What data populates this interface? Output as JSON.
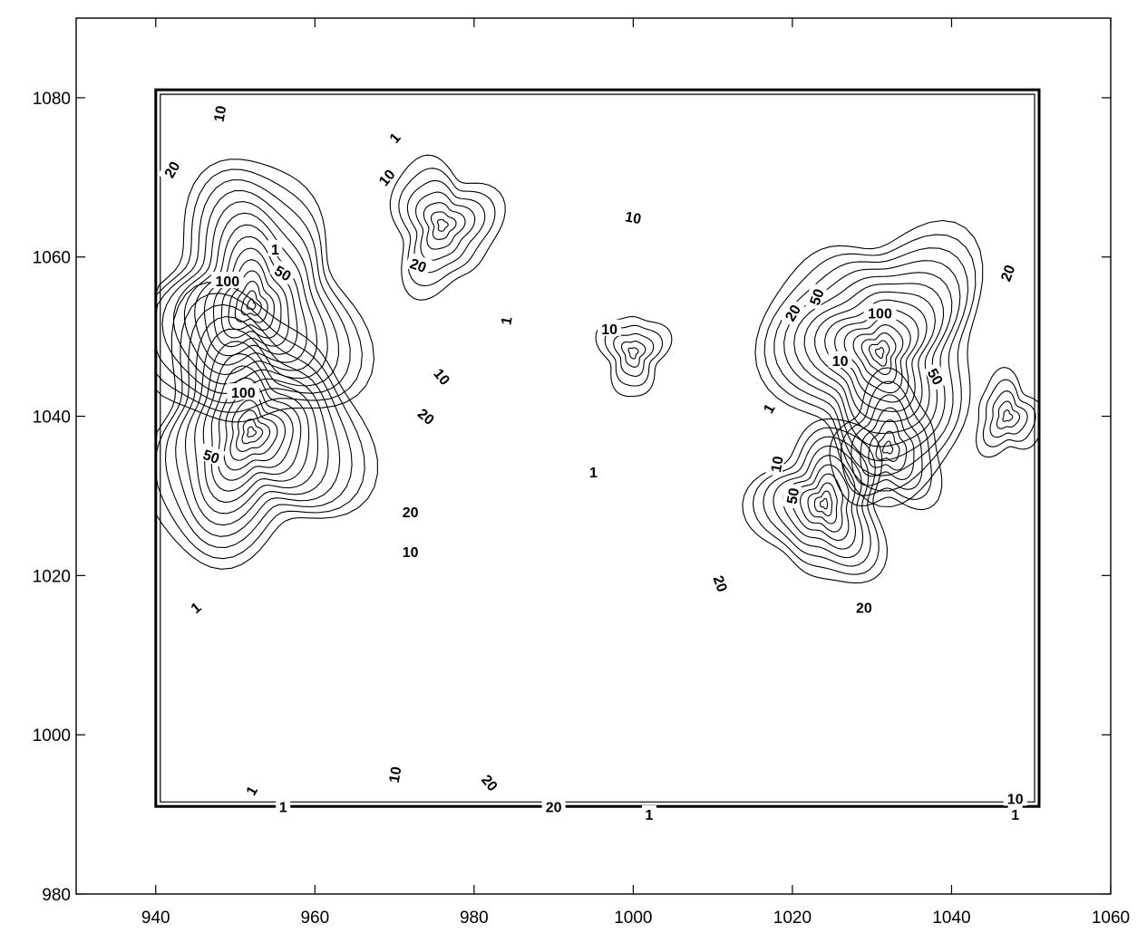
{
  "chart_data": {
    "type": "contour",
    "title": "",
    "xlabel": "",
    "ylabel": "",
    "xlim": [
      930,
      1060
    ],
    "ylim": [
      980,
      1090
    ],
    "x_ticks": [
      940,
      960,
      980,
      1000,
      1020,
      1040,
      1060
    ],
    "y_ticks": [
      980,
      1000,
      1020,
      1040,
      1060,
      1080
    ],
    "grid": false,
    "boundary": [
      [
        940,
        1081
      ],
      [
        1051,
        1081
      ],
      [
        1051,
        991
      ],
      [
        940,
        991
      ]
    ],
    "contour_levels": [
      1,
      10,
      20,
      50,
      100
    ],
    "peaks": [
      {
        "x": 952,
        "y": 1054,
        "level": 100
      },
      {
        "x": 952,
        "y": 1038,
        "level": 100
      },
      {
        "x": 976,
        "y": 1064,
        "level": 20
      },
      {
        "x": 1000,
        "y": 1048,
        "level": 10
      },
      {
        "x": 1031,
        "y": 1048,
        "level": 100
      },
      {
        "x": 1024,
        "y": 1029,
        "level": 50
      },
      {
        "x": 1032,
        "y": 1036,
        "level": 20
      },
      {
        "x": 1047,
        "y": 1040,
        "level": 10
      }
    ],
    "contour_labels": [
      {
        "text": "10",
        "x": 948,
        "y": 1078,
        "rot": -80
      },
      {
        "text": "20",
        "x": 942,
        "y": 1071,
        "rot": -60
      },
      {
        "text": "1",
        "x": 955,
        "y": 1061,
        "rot": 0
      },
      {
        "text": "50",
        "x": 956,
        "y": 1058,
        "rot": 30
      },
      {
        "text": "100",
        "x": 949,
        "y": 1057,
        "rot": 0
      },
      {
        "text": "100",
        "x": 951,
        "y": 1043,
        "rot": 0
      },
      {
        "text": "50",
        "x": 947,
        "y": 1035,
        "rot": 20
      },
      {
        "text": "10",
        "x": 969,
        "y": 1070,
        "rot": -50
      },
      {
        "text": "1",
        "x": 970,
        "y": 1075,
        "rot": -50
      },
      {
        "text": "20",
        "x": 973,
        "y": 1059,
        "rot": 20
      },
      {
        "text": "10",
        "x": 1000,
        "y": 1065,
        "rot": 10
      },
      {
        "text": "1",
        "x": 984,
        "y": 1052,
        "rot": -80
      },
      {
        "text": "10",
        "x": 997,
        "y": 1051,
        "rot": 0
      },
      {
        "text": "10",
        "x": 976,
        "y": 1045,
        "rot": 50
      },
      {
        "text": "20",
        "x": 974,
        "y": 1040,
        "rot": 40
      },
      {
        "text": "1",
        "x": 995,
        "y": 1033,
        "rot": 0
      },
      {
        "text": "20",
        "x": 972,
        "y": 1028,
        "rot": 0
      },
      {
        "text": "10",
        "x": 972,
        "y": 1023,
        "rot": 0
      },
      {
        "text": "1",
        "x": 945,
        "y": 1016,
        "rot": -40
      },
      {
        "text": "20",
        "x": 1011,
        "y": 1019,
        "rot": 70
      },
      {
        "text": "20",
        "x": 1020,
        "y": 1053,
        "rot": -60
      },
      {
        "text": "50",
        "x": 1023,
        "y": 1055,
        "rot": -70
      },
      {
        "text": "100",
        "x": 1031,
        "y": 1053,
        "rot": 0
      },
      {
        "text": "10",
        "x": 1026,
        "y": 1047,
        "rot": 0
      },
      {
        "text": "50",
        "x": 1038,
        "y": 1045,
        "rot": 60
      },
      {
        "text": "20",
        "x": 1047,
        "y": 1058,
        "rot": -70
      },
      {
        "text": "1",
        "x": 1017,
        "y": 1041,
        "rot": -60
      },
      {
        "text": "10",
        "x": 1018,
        "y": 1034,
        "rot": -80
      },
      {
        "text": "50",
        "x": 1020,
        "y": 1030,
        "rot": -80
      },
      {
        "text": "20",
        "x": 1029,
        "y": 1016,
        "rot": 0
      },
      {
        "text": "1",
        "x": 952,
        "y": 993,
        "rot": -60
      },
      {
        "text": "1",
        "x": 956,
        "y": 991,
        "rot": 0
      },
      {
        "text": "10",
        "x": 970,
        "y": 995,
        "rot": -80
      },
      {
        "text": "20",
        "x": 982,
        "y": 994,
        "rot": 50
      },
      {
        "text": "20",
        "x": 990,
        "y": 991,
        "rot": 0
      },
      {
        "text": "1",
        "x": 1002,
        "y": 990,
        "rot": 0
      },
      {
        "text": "10",
        "x": 1048,
        "y": 992,
        "rot": 0
      },
      {
        "text": "1",
        "x": 1048,
        "y": 990,
        "rot": 0
      }
    ]
  }
}
